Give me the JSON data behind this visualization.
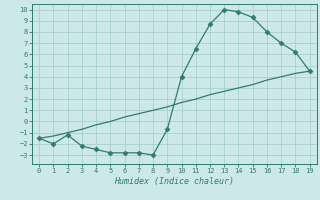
{
  "x": [
    0,
    1,
    2,
    3,
    4,
    5,
    6,
    7,
    8,
    9,
    10,
    11,
    12,
    13,
    14,
    15,
    16,
    17,
    18,
    19
  ],
  "y_curve": [
    -1.5,
    -2.0,
    -1.2,
    -2.2,
    -2.5,
    -2.8,
    -2.8,
    -2.8,
    -3.0,
    -0.7,
    4.0,
    6.5,
    8.7,
    10.0,
    9.8,
    9.3,
    8.0,
    7.0,
    6.2,
    4.5
  ],
  "y_line": [
    -1.5,
    -1.3,
    -1.0,
    -0.7,
    -0.3,
    0.0,
    0.4,
    0.7,
    1.0,
    1.3,
    1.7,
    2.0,
    2.4,
    2.7,
    3.0,
    3.3,
    3.7,
    4.0,
    4.3,
    4.5
  ],
  "color": "#2e7d6e",
  "bg_color": "#cce8e8",
  "grid_color": "#aacfcf",
  "xlabel": "Humidex (Indice chaleur)",
  "ylim": [
    -3.8,
    10.5
  ],
  "xlim": [
    -0.5,
    19.5
  ],
  "yticks": [
    -3,
    -2,
    -1,
    0,
    1,
    2,
    3,
    4,
    5,
    6,
    7,
    8,
    9,
    10
  ],
  "xticks": [
    0,
    1,
    2,
    3,
    4,
    5,
    6,
    7,
    8,
    9,
    10,
    11,
    12,
    13,
    14,
    15,
    16,
    17,
    18,
    19
  ],
  "marker": "D",
  "markersize": 2.5,
  "linewidth": 0.9
}
